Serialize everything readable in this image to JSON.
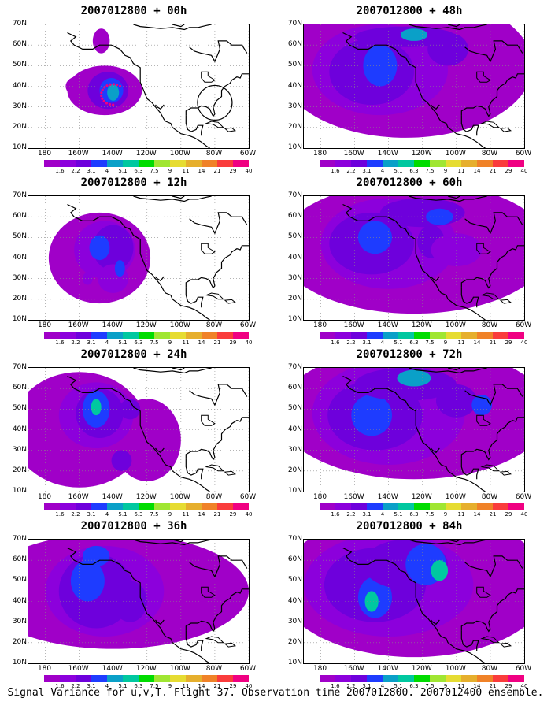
{
  "caption": "Signal Variance for u,v,T. Flight 37. Observation time 2007012800. 2007012400 ensemble.",
  "colors": [
    "#a000c8",
    "#8c00dc",
    "#6e00dc",
    "#1e3cff",
    "#0aa0c8",
    "#00c8a0",
    "#00dc00",
    "#a0e632",
    "#e6dc32",
    "#e6af2d",
    "#f08228",
    "#fa3c3c",
    "#f00082"
  ],
  "contour_levels": [
    "1.6",
    "2.2",
    "3.1",
    "4",
    "5.1",
    "6.3",
    "7.5",
    "9",
    "11",
    "14",
    "21",
    "29",
    "40"
  ],
  "lat_labels": [
    "70N",
    "60N",
    "50N",
    "40N",
    "30N",
    "20N",
    "10N"
  ],
  "lon_labels": [
    "180",
    "160W",
    "140W",
    "120W",
    "100W",
    "80W",
    "60W"
  ],
  "panels": [
    {
      "title": "2007012800 + 00h",
      "lead": 0
    },
    {
      "title": "2007012800 + 48h",
      "lead": 48
    },
    {
      "title": "2007012800 + 12h",
      "lead": 12
    },
    {
      "title": "2007012800 + 60h",
      "lead": 60
    },
    {
      "title": "2007012800 + 24h",
      "lead": 24
    },
    {
      "title": "2007012800 + 72h",
      "lead": 72
    },
    {
      "title": "2007012800 + 36h",
      "lead": 36
    },
    {
      "title": "2007012800 + 84h",
      "lead": 84
    }
  ]
}
